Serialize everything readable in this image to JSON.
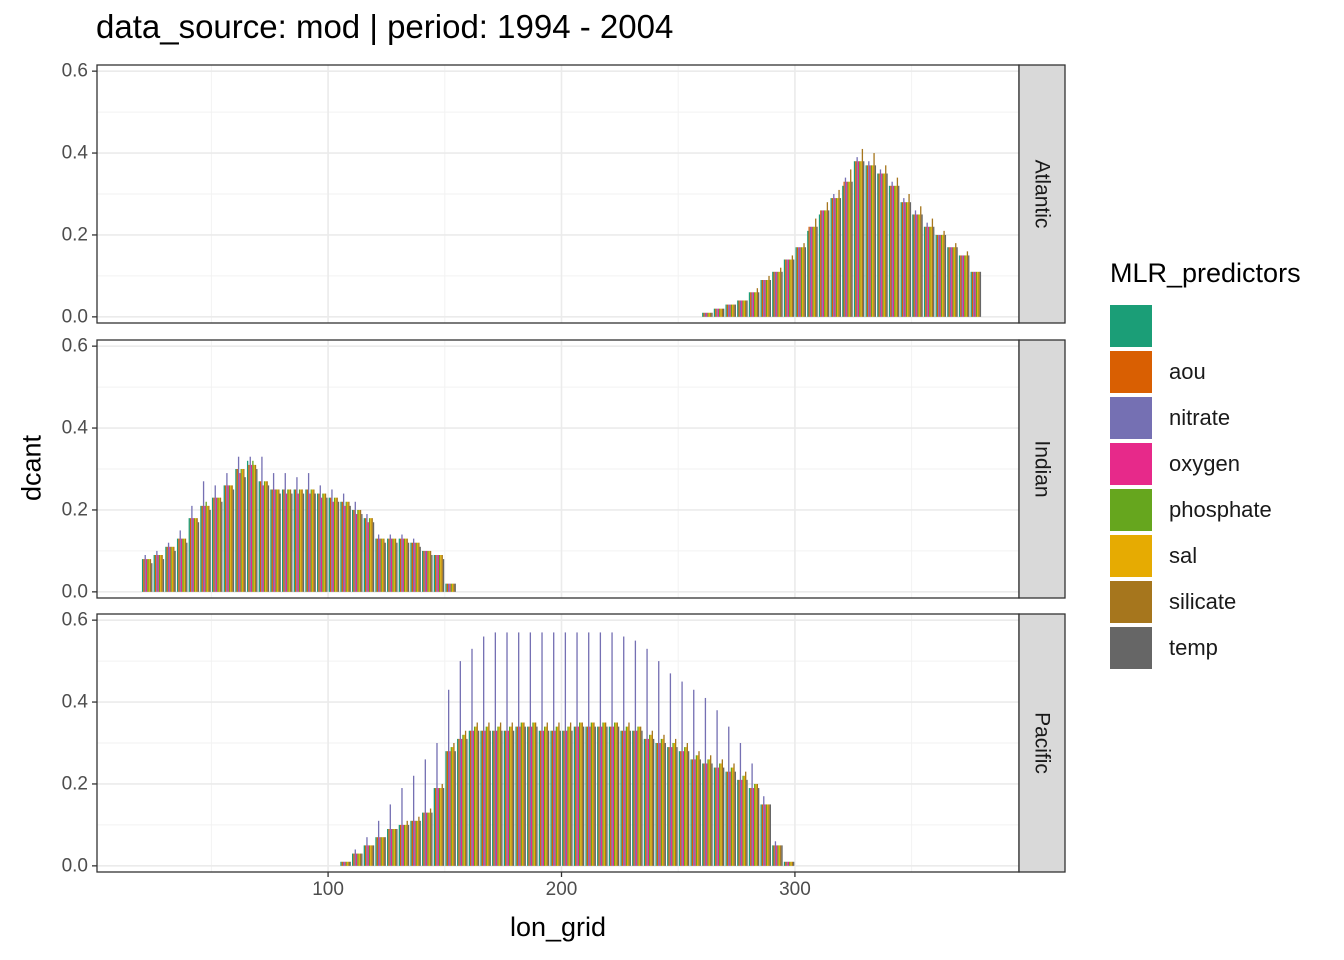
{
  "chart_data": {
    "type": "bar",
    "title": "data_source: mod | period: 1994 - 2004",
    "xlabel": "lon_grid",
    "ylabel": "dcant",
    "xlim": [
      1,
      396
    ],
    "ylim": [
      -0.015,
      0.615
    ],
    "x_ticks": [
      100,
      200,
      300
    ],
    "y_ticks": [
      0.0,
      0.2,
      0.4,
      0.6
    ],
    "y_tick_labels": [
      "0.0",
      "0.2",
      "0.4",
      "0.6"
    ],
    "x_tick_labels": [
      "100",
      "200",
      "300"
    ],
    "grid": true,
    "position": "dodge",
    "bin_width": 5,
    "legend": {
      "title": "MLR_predictors",
      "position": "right",
      "entries": [
        "",
        "aou",
        "nitrate",
        "oxygen",
        "phosphate",
        "sal",
        "silicate",
        "temp"
      ],
      "colors": [
        "#1B9E77",
        "#D95F02",
        "#7570B3",
        "#E7298A",
        "#66A61E",
        "#E6AB02",
        "#A6761D",
        "#666666"
      ]
    },
    "panels": [
      {
        "label": "Atlantic",
        "x": [
          262.5,
          267.5,
          272.5,
          277.5,
          282.5,
          287.5,
          292.5,
          297.5,
          302.5,
          307.5,
          312.5,
          317.5,
          322.5,
          327.5,
          332.5,
          337.5,
          342.5,
          347.5,
          352.5,
          357.5,
          362.5,
          367.5,
          372.5,
          377.5
        ],
        "series": [
          {
            "name": "",
            "values": [
              0.01,
              0.02,
              0.03,
              0.04,
              0.06,
              0.09,
              0.11,
              0.14,
              0.17,
              0.21,
              0.25,
              0.29,
              0.32,
              0.38,
              0.37,
              0.35,
              0.32,
              0.28,
              0.25,
              0.22,
              0.2,
              0.17,
              0.15,
              0.11
            ]
          },
          {
            "name": "aou",
            "values": [
              0.01,
              0.02,
              0.03,
              0.04,
              0.06,
              0.09,
              0.11,
              0.14,
              0.17,
              0.22,
              0.26,
              0.29,
              0.33,
              0.38,
              0.37,
              0.35,
              0.32,
              0.28,
              0.25,
              0.22,
              0.2,
              0.17,
              0.15,
              0.11
            ]
          },
          {
            "name": "nitrate",
            "values": [
              0.01,
              0.02,
              0.03,
              0.04,
              0.06,
              0.09,
              0.11,
              0.14,
              0.17,
              0.22,
              0.26,
              0.3,
              0.34,
              0.39,
              0.38,
              0.36,
              0.33,
              0.29,
              0.26,
              0.23,
              0.2,
              0.17,
              0.15,
              0.11
            ]
          },
          {
            "name": "oxygen",
            "values": [
              0.01,
              0.02,
              0.03,
              0.04,
              0.06,
              0.09,
              0.11,
              0.14,
              0.17,
              0.22,
              0.26,
              0.29,
              0.33,
              0.38,
              0.37,
              0.35,
              0.32,
              0.28,
              0.25,
              0.22,
              0.2,
              0.17,
              0.15,
              0.11
            ]
          },
          {
            "name": "phosphate",
            "values": [
              0.01,
              0.02,
              0.03,
              0.04,
              0.06,
              0.09,
              0.11,
              0.14,
              0.17,
              0.22,
              0.26,
              0.29,
              0.33,
              0.38,
              0.37,
              0.35,
              0.32,
              0.28,
              0.25,
              0.22,
              0.2,
              0.17,
              0.15,
              0.11
            ]
          },
          {
            "name": "sal",
            "values": [
              0.01,
              0.02,
              0.03,
              0.04,
              0.06,
              0.09,
              0.11,
              0.14,
              0.17,
              0.22,
              0.26,
              0.29,
              0.33,
              0.38,
              0.37,
              0.35,
              0.32,
              0.28,
              0.25,
              0.22,
              0.2,
              0.17,
              0.15,
              0.11
            ]
          },
          {
            "name": "silicate",
            "values": [
              0.01,
              0.02,
              0.03,
              0.04,
              0.07,
              0.1,
              0.12,
              0.15,
              0.18,
              0.24,
              0.28,
              0.31,
              0.36,
              0.41,
              0.4,
              0.37,
              0.34,
              0.3,
              0.27,
              0.24,
              0.21,
              0.18,
              0.16,
              0.11
            ]
          },
          {
            "name": "temp",
            "values": [
              0.01,
              0.02,
              0.03,
              0.04,
              0.06,
              0.09,
              0.11,
              0.14,
              0.17,
              0.22,
              0.26,
              0.29,
              0.33,
              0.38,
              0.37,
              0.35,
              0.32,
              0.28,
              0.25,
              0.22,
              0.2,
              0.17,
              0.15,
              0.11
            ]
          }
        ]
      },
      {
        "label": "Indian",
        "x": [
          22.5,
          27.5,
          32.5,
          37.5,
          42.5,
          47.5,
          52.5,
          57.5,
          62.5,
          67.5,
          72.5,
          77.5,
          82.5,
          87.5,
          92.5,
          97.5,
          102.5,
          107.5,
          112.5,
          117.5,
          122.5,
          127.5,
          132.5,
          137.5,
          142.5,
          147.5,
          152.5
        ],
        "series": [
          {
            "name": "",
            "values": [
              0.08,
              0.09,
              0.11,
              0.13,
              0.18,
              0.21,
              0.23,
              0.26,
              0.3,
              0.32,
              0.27,
              0.25,
              0.25,
              0.25,
              0.25,
              0.24,
              0.23,
              0.22,
              0.2,
              0.18,
              0.13,
              0.13,
              0.13,
              0.12,
              0.1,
              0.09,
              0.02
            ]
          },
          {
            "name": "aou",
            "values": [
              0.08,
              0.09,
              0.11,
              0.13,
              0.18,
              0.21,
              0.23,
              0.26,
              0.3,
              0.31,
              0.27,
              0.25,
              0.25,
              0.25,
              0.25,
              0.24,
              0.23,
              0.22,
              0.2,
              0.18,
              0.13,
              0.13,
              0.13,
              0.12,
              0.1,
              0.09,
              0.02
            ]
          },
          {
            "name": "nitrate",
            "values": [
              0.09,
              0.1,
              0.12,
              0.15,
              0.21,
              0.27,
              0.26,
              0.29,
              0.33,
              0.33,
              0.33,
              0.29,
              0.29,
              0.28,
              0.29,
              0.26,
              0.25,
              0.24,
              0.22,
              0.19,
              0.14,
              0.14,
              0.14,
              0.13,
              0.1,
              0.09,
              0.02
            ]
          },
          {
            "name": "oxygen",
            "values": [
              0.08,
              0.09,
              0.11,
              0.13,
              0.18,
              0.21,
              0.23,
              0.26,
              0.29,
              0.31,
              0.26,
              0.25,
              0.24,
              0.24,
              0.24,
              0.23,
              0.22,
              0.21,
              0.19,
              0.17,
              0.13,
              0.13,
              0.13,
              0.12,
              0.1,
              0.09,
              0.02
            ]
          },
          {
            "name": "phosphate",
            "values": [
              0.08,
              0.09,
              0.11,
              0.13,
              0.18,
              0.22,
              0.23,
              0.26,
              0.3,
              0.32,
              0.27,
              0.25,
              0.25,
              0.25,
              0.25,
              0.24,
              0.23,
              0.22,
              0.2,
              0.18,
              0.13,
              0.13,
              0.13,
              0.12,
              0.1,
              0.09,
              0.02
            ]
          },
          {
            "name": "sal",
            "values": [
              0.08,
              0.09,
              0.11,
              0.13,
              0.18,
              0.21,
              0.23,
              0.26,
              0.3,
              0.31,
              0.27,
              0.25,
              0.25,
              0.25,
              0.25,
              0.24,
              0.23,
              0.22,
              0.2,
              0.18,
              0.13,
              0.13,
              0.13,
              0.12,
              0.1,
              0.09,
              0.02
            ]
          },
          {
            "name": "silicate",
            "values": [
              0.08,
              0.09,
              0.11,
              0.13,
              0.18,
              0.21,
              0.23,
              0.26,
              0.3,
              0.31,
              0.27,
              0.25,
              0.25,
              0.25,
              0.25,
              0.24,
              0.23,
              0.22,
              0.2,
              0.18,
              0.13,
              0.13,
              0.13,
              0.12,
              0.1,
              0.09,
              0.02
            ]
          },
          {
            "name": "temp",
            "values": [
              0.07,
              0.08,
              0.1,
              0.12,
              0.17,
              0.2,
              0.22,
              0.25,
              0.28,
              0.3,
              0.26,
              0.24,
              0.24,
              0.24,
              0.24,
              0.23,
              0.22,
              0.21,
              0.19,
              0.17,
              0.12,
              0.12,
              0.12,
              0.11,
              0.09,
              0.08,
              0.02
            ]
          }
        ]
      },
      {
        "label": "Pacific",
        "x": [
          107.5,
          112.5,
          117.5,
          122.5,
          127.5,
          132.5,
          137.5,
          142.5,
          147.5,
          152.5,
          157.5,
          162.5,
          167.5,
          172.5,
          177.5,
          182.5,
          187.5,
          192.5,
          197.5,
          202.5,
          207.5,
          212.5,
          217.5,
          222.5,
          227.5,
          232.5,
          237.5,
          242.5,
          247.5,
          252.5,
          257.5,
          262.5,
          267.5,
          272.5,
          277.5,
          282.5,
          287.5,
          292.5,
          297.5
        ],
        "series": [
          {
            "name": "",
            "values": [
              0.01,
              0.03,
              0.05,
              0.07,
              0.09,
              0.1,
              0.11,
              0.13,
              0.19,
              0.28,
              0.31,
              0.33,
              0.33,
              0.33,
              0.33,
              0.34,
              0.34,
              0.33,
              0.33,
              0.33,
              0.34,
              0.34,
              0.34,
              0.34,
              0.33,
              0.33,
              0.31,
              0.3,
              0.29,
              0.28,
              0.26,
              0.25,
              0.24,
              0.23,
              0.21,
              0.19,
              0.15,
              0.05,
              0.01
            ]
          },
          {
            "name": "aou",
            "values": [
              0.01,
              0.03,
              0.05,
              0.07,
              0.09,
              0.1,
              0.11,
              0.13,
              0.19,
              0.28,
              0.31,
              0.33,
              0.33,
              0.33,
              0.33,
              0.34,
              0.34,
              0.33,
              0.33,
              0.33,
              0.34,
              0.34,
              0.34,
              0.34,
              0.33,
              0.33,
              0.31,
              0.3,
              0.29,
              0.28,
              0.26,
              0.25,
              0.24,
              0.23,
              0.21,
              0.19,
              0.15,
              0.05,
              0.01
            ]
          },
          {
            "name": "nitrate",
            "values": [
              0.01,
              0.04,
              0.07,
              0.11,
              0.15,
              0.19,
              0.22,
              0.26,
              0.3,
              0.43,
              0.5,
              0.53,
              0.56,
              0.57,
              0.57,
              0.57,
              0.57,
              0.57,
              0.57,
              0.57,
              0.57,
              0.57,
              0.57,
              0.57,
              0.56,
              0.55,
              0.53,
              0.5,
              0.47,
              0.45,
              0.43,
              0.41,
              0.38,
              0.34,
              0.3,
              0.25,
              0.17,
              0.06,
              0.01
            ]
          },
          {
            "name": "oxygen",
            "values": [
              0.01,
              0.03,
              0.05,
              0.07,
              0.09,
              0.1,
              0.11,
              0.13,
              0.19,
              0.28,
              0.31,
              0.33,
              0.33,
              0.33,
              0.33,
              0.34,
              0.34,
              0.33,
              0.33,
              0.33,
              0.34,
              0.34,
              0.34,
              0.34,
              0.33,
              0.33,
              0.31,
              0.3,
              0.29,
              0.28,
              0.26,
              0.25,
              0.24,
              0.23,
              0.21,
              0.19,
              0.15,
              0.05,
              0.01
            ]
          },
          {
            "name": "phosphate",
            "values": [
              0.01,
              0.03,
              0.05,
              0.07,
              0.09,
              0.1,
              0.11,
              0.13,
              0.19,
              0.29,
              0.32,
              0.34,
              0.34,
              0.34,
              0.34,
              0.35,
              0.35,
              0.34,
              0.34,
              0.34,
              0.35,
              0.35,
              0.35,
              0.35,
              0.34,
              0.34,
              0.32,
              0.31,
              0.3,
              0.29,
              0.27,
              0.26,
              0.25,
              0.24,
              0.22,
              0.2,
              0.15,
              0.05,
              0.01
            ]
          },
          {
            "name": "sal",
            "values": [
              0.01,
              0.03,
              0.05,
              0.07,
              0.09,
              0.1,
              0.11,
              0.13,
              0.19,
              0.29,
              0.32,
              0.34,
              0.34,
              0.34,
              0.34,
              0.35,
              0.35,
              0.34,
              0.34,
              0.34,
              0.35,
              0.35,
              0.35,
              0.35,
              0.34,
              0.34,
              0.32,
              0.31,
              0.3,
              0.29,
              0.27,
              0.26,
              0.25,
              0.24,
              0.22,
              0.2,
              0.15,
              0.05,
              0.01
            ]
          },
          {
            "name": "silicate",
            "values": [
              0.01,
              0.03,
              0.05,
              0.07,
              0.09,
              0.11,
              0.12,
              0.14,
              0.2,
              0.3,
              0.33,
              0.35,
              0.35,
              0.35,
              0.35,
              0.35,
              0.35,
              0.35,
              0.35,
              0.35,
              0.35,
              0.35,
              0.35,
              0.35,
              0.35,
              0.34,
              0.33,
              0.32,
              0.31,
              0.3,
              0.28,
              0.27,
              0.26,
              0.25,
              0.23,
              0.2,
              0.15,
              0.05,
              0.01
            ]
          },
          {
            "name": "temp",
            "values": [
              0.01,
              0.03,
              0.05,
              0.07,
              0.09,
              0.1,
              0.11,
              0.13,
              0.19,
              0.28,
              0.31,
              0.33,
              0.33,
              0.33,
              0.33,
              0.34,
              0.34,
              0.33,
              0.33,
              0.33,
              0.34,
              0.34,
              0.34,
              0.34,
              0.33,
              0.33,
              0.31,
              0.3,
              0.29,
              0.28,
              0.26,
              0.25,
              0.24,
              0.23,
              0.21,
              0.19,
              0.15,
              0.05,
              0.01
            ]
          }
        ]
      }
    ]
  }
}
